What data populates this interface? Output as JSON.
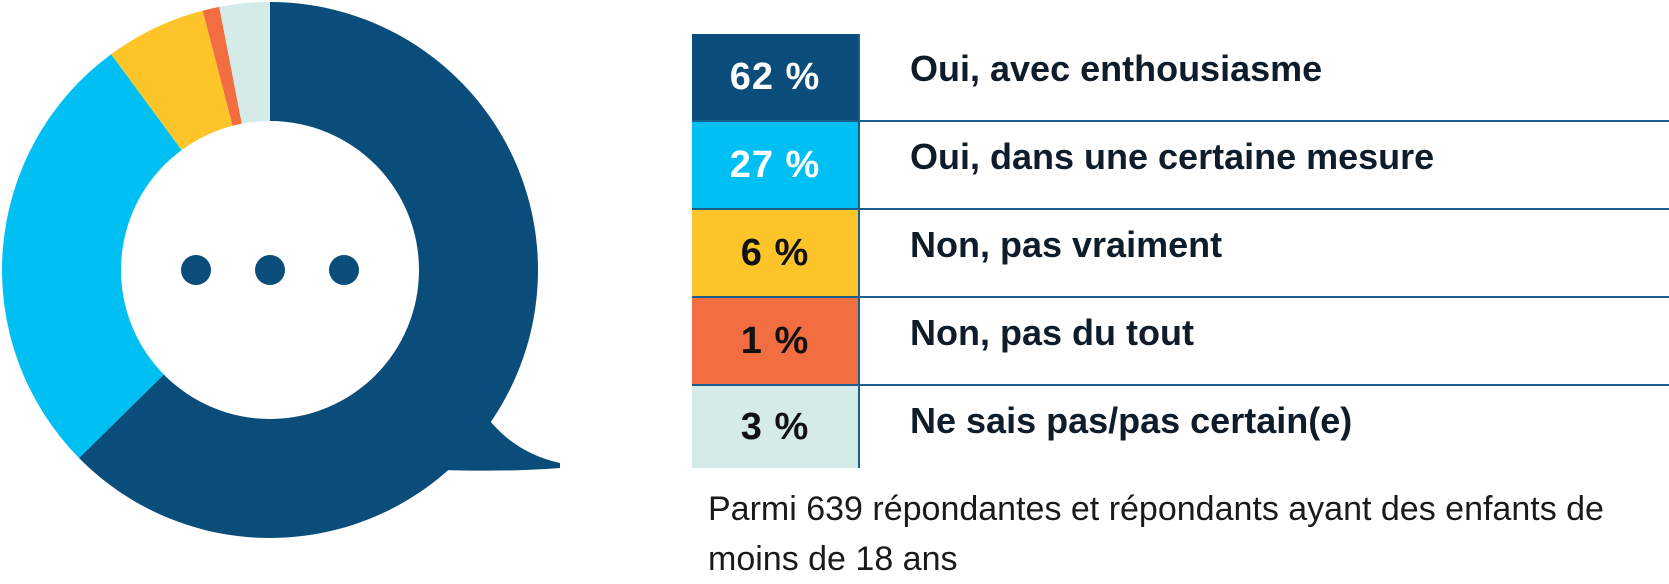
{
  "chart_data": {
    "type": "pie",
    "variant": "donut",
    "center_symbol": "...",
    "slices": [
      {
        "label": "Oui, avec enthousiasme",
        "value": 62,
        "display": "62 %",
        "color": "#0b4d7a",
        "text_color": "#ffffff"
      },
      {
        "label": "Oui, dans une certaine mesure",
        "value": 27,
        "display": "27 %",
        "color": "#00c0f3",
        "text_color": "#ffffff"
      },
      {
        "label": "Non, pas vraiment",
        "value": 6,
        "display": "6 %",
        "color": "#fdc52a",
        "text_color": "#111111"
      },
      {
        "label": "Non, pas du tout",
        "value": 1,
        "display": "1 %",
        "color": "#f26d3f",
        "text_color": "#111111"
      },
      {
        "label": "Ne sais pas/pas certain(e)",
        "value": 3,
        "display": "3 %",
        "color": "#d4ebe8",
        "text_color": "#111111"
      }
    ],
    "legend": "right"
  },
  "footnote": "Parmi 639 répondantes et répondants ayant des enfants de moins de 18 ans"
}
